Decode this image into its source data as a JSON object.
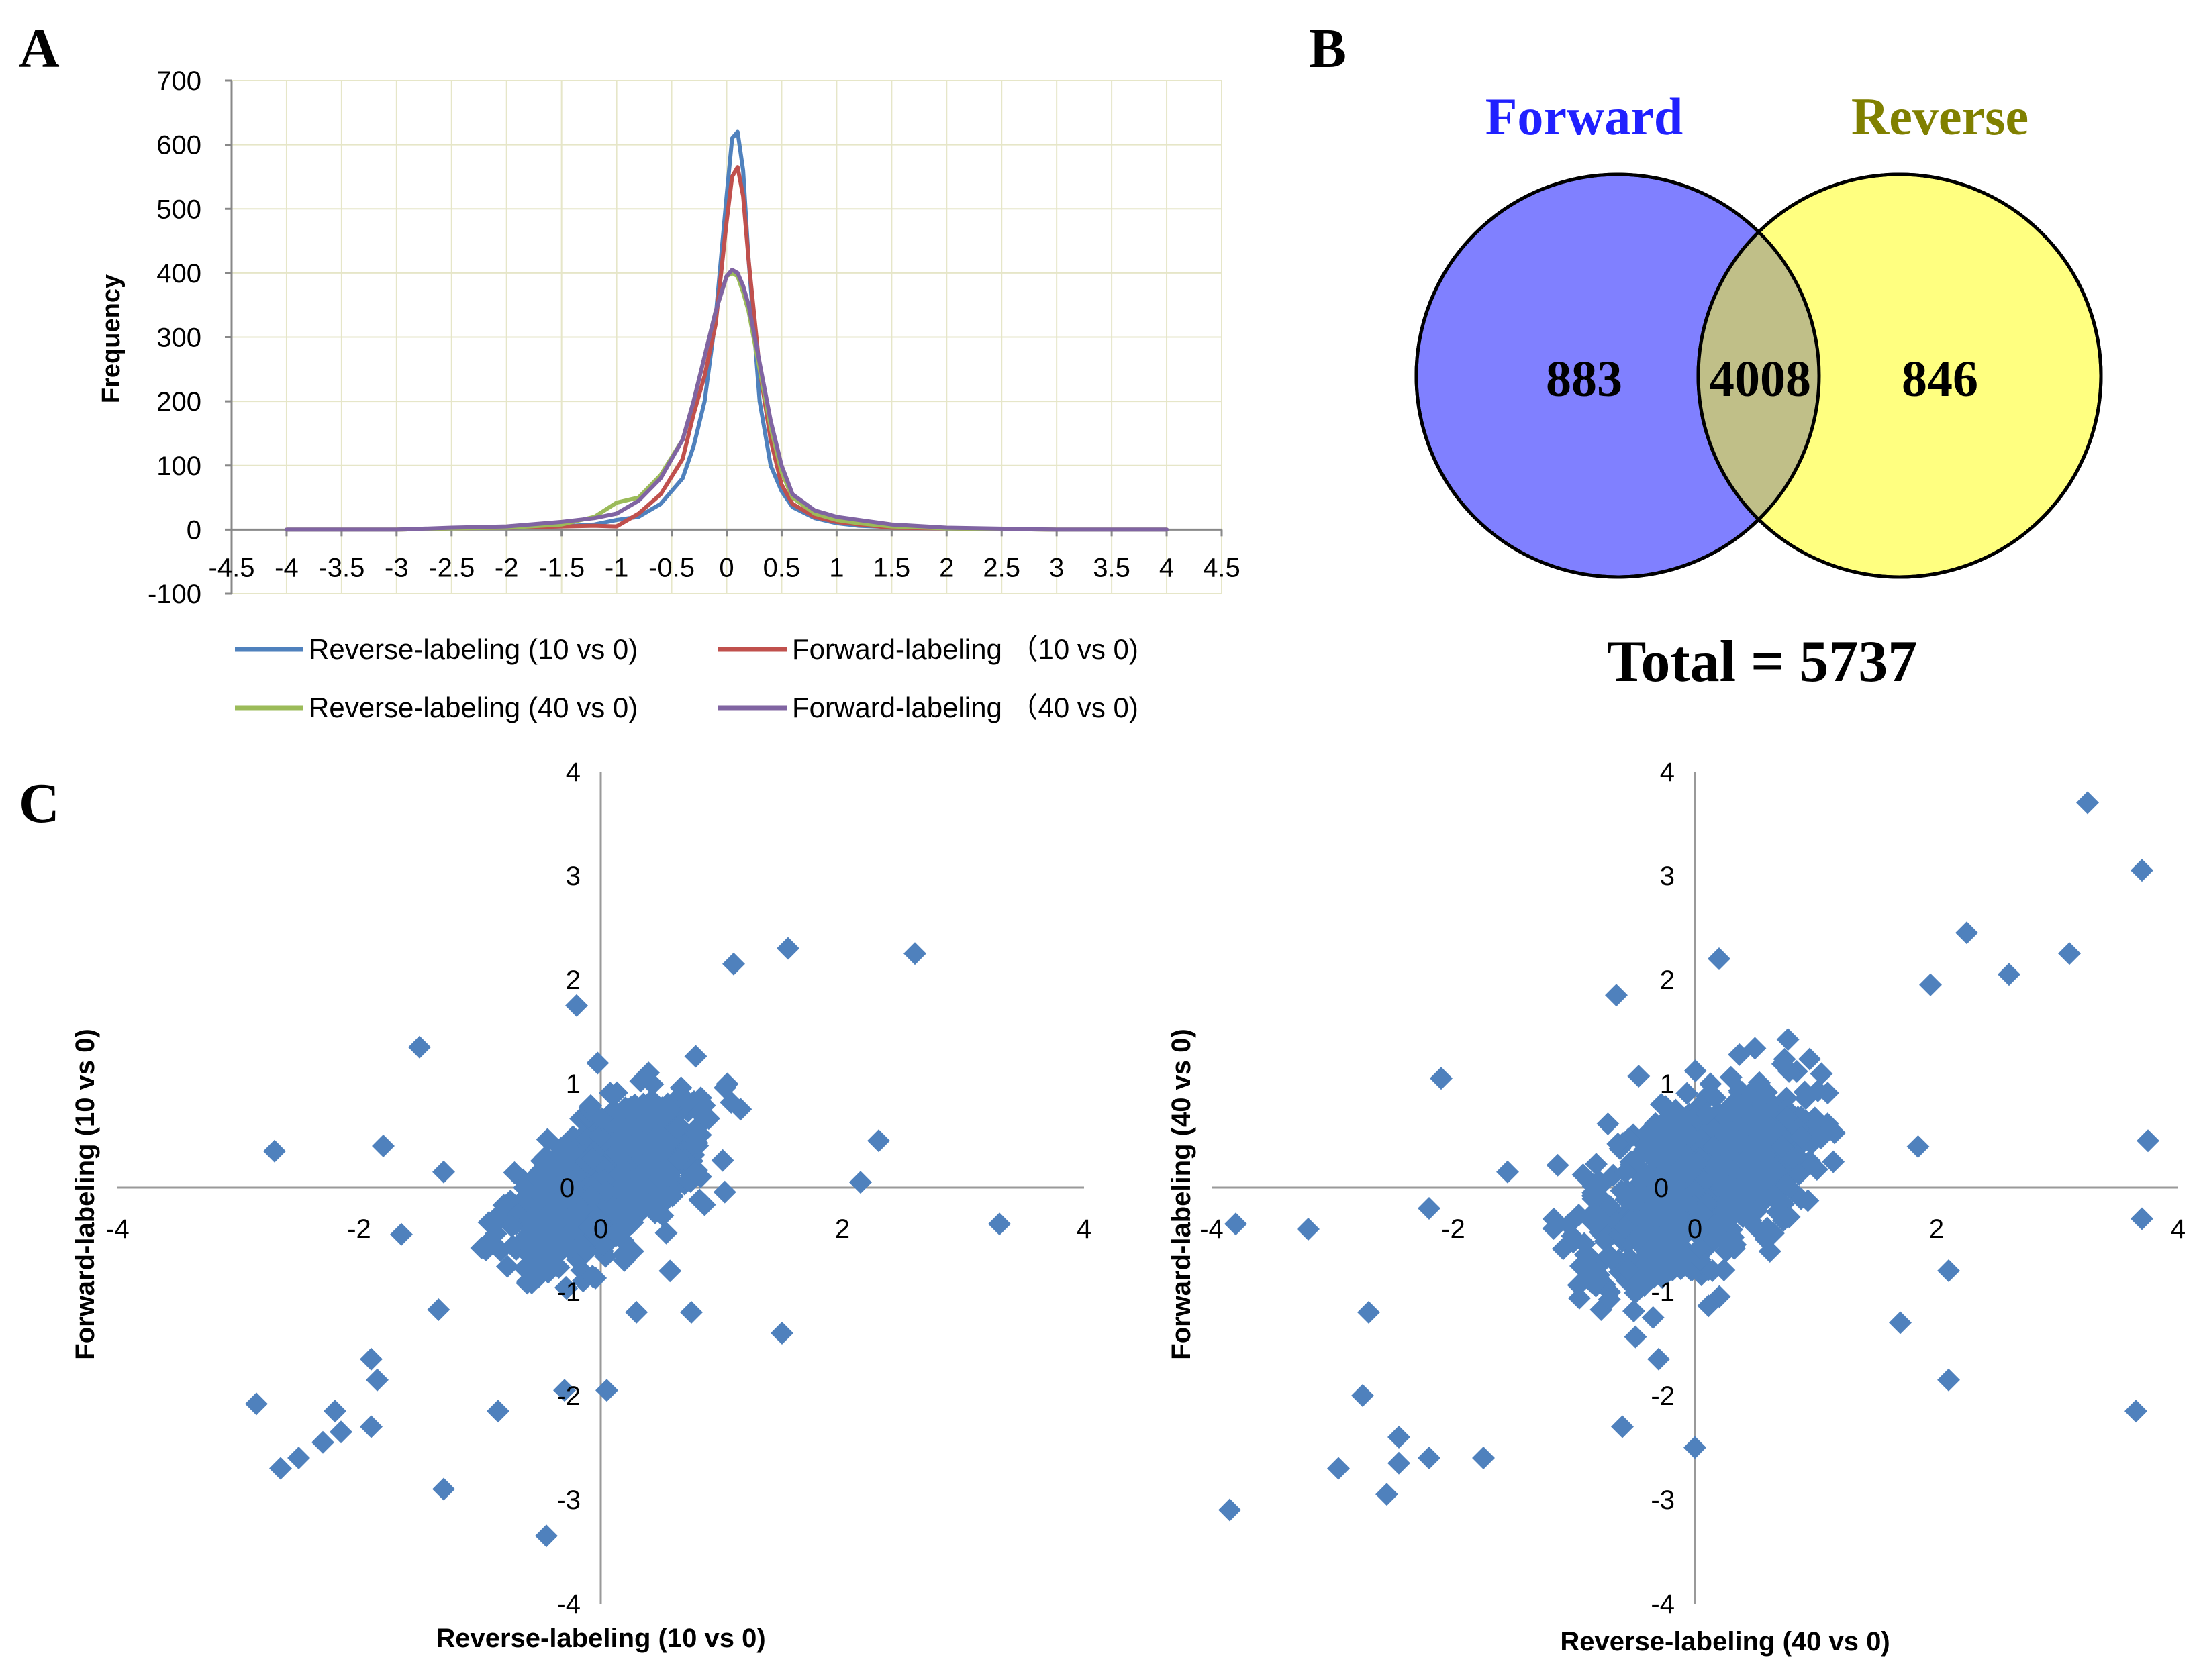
{
  "panel_labels": {
    "a": "A",
    "b": "B",
    "c": "C"
  },
  "colors": {
    "reverse_10": "#4f81bd",
    "forward_10": "#c0504d",
    "reverse_40": "#9bbb59",
    "forward_40": "#8064a2",
    "venn_forward": "#8080ff",
    "venn_reverse": "#ffff80",
    "venn_overlap": "#c0bf88",
    "forward_title": "#2020ff",
    "reverse_title": "#808000",
    "scatter_marker": "#4f81bd"
  },
  "chart_data": [
    {
      "id": "A",
      "type": "line",
      "title": "",
      "ylabel": "Frequency",
      "xlabel": "",
      "xlim": [
        -4.5,
        4.5
      ],
      "ylim": [
        -100,
        700
      ],
      "x_ticks": [
        "-4.5",
        "-4",
        "-3.5",
        "-3",
        "-2.5",
        "-2",
        "-1.5",
        "-1",
        "-0.5",
        "0",
        "0.5",
        "1",
        "1.5",
        "2",
        "2.5",
        "3",
        "3.5",
        "4",
        "4.5"
      ],
      "y_ticks": [
        "-100",
        "0",
        "100",
        "200",
        "300",
        "400",
        "500",
        "600",
        "700"
      ],
      "series": [
        {
          "name": "Reverse-labeling (10 vs 0)",
          "color_key": "reverse_10",
          "x": [
            -4,
            -3,
            -2.5,
            -2,
            -1.5,
            -1.2,
            -1,
            -0.8,
            -0.6,
            -0.4,
            -0.3,
            -0.2,
            -0.1,
            0,
            0.05,
            0.1,
            0.15,
            0.2,
            0.3,
            0.4,
            0.5,
            0.6,
            0.8,
            1,
            1.2,
            1.5,
            2,
            3,
            4
          ],
          "y": [
            0,
            0,
            2,
            3,
            5,
            8,
            15,
            20,
            40,
            80,
            130,
            200,
            330,
            520,
            610,
            620,
            560,
            420,
            200,
            100,
            60,
            35,
            18,
            10,
            6,
            4,
            2,
            0,
            0
          ]
        },
        {
          "name": "Forward-labeling （10 vs 0)",
          "color_key": "forward_10",
          "x": [
            -4,
            -3,
            -2.5,
            -2,
            -1.5,
            -1.2,
            -1,
            -0.8,
            -0.6,
            -0.4,
            -0.3,
            -0.2,
            -0.1,
            0,
            0.05,
            0.1,
            0.15,
            0.2,
            0.3,
            0.4,
            0.5,
            0.6,
            0.8,
            1,
            1.2,
            1.5,
            2,
            3,
            4
          ],
          "y": [
            0,
            0,
            2,
            3,
            5,
            6,
            5,
            25,
            55,
            110,
            180,
            240,
            320,
            480,
            550,
            565,
            520,
            420,
            250,
            140,
            70,
            40,
            20,
            12,
            8,
            3,
            2,
            0,
            0
          ]
        },
        {
          "name": "Reverse-labeling (40 vs 0)",
          "color_key": "reverse_40",
          "x": [
            -4,
            -3,
            -2.5,
            -2,
            -1.5,
            -1.2,
            -1,
            -0.8,
            -0.6,
            -0.4,
            -0.3,
            -0.2,
            -0.1,
            0,
            0.05,
            0.1,
            0.15,
            0.2,
            0.3,
            0.4,
            0.5,
            0.6,
            0.8,
            1,
            1.2,
            1.5,
            2,
            3,
            4
          ],
          "y": [
            0,
            0,
            2,
            3,
            8,
            20,
            42,
            50,
            85,
            140,
            200,
            270,
            340,
            395,
            400,
            395,
            370,
            340,
            250,
            160,
            90,
            50,
            25,
            15,
            10,
            5,
            2,
            0,
            0
          ]
        },
        {
          "name": "Forward-labeling （40 vs 0)",
          "color_key": "forward_40",
          "x": [
            -4,
            -3,
            -2.5,
            -2,
            -1.5,
            -1.2,
            -1,
            -0.8,
            -0.6,
            -0.4,
            -0.3,
            -0.2,
            -0.1,
            0,
            0.05,
            0.1,
            0.15,
            0.2,
            0.3,
            0.4,
            0.5,
            0.6,
            0.8,
            1,
            1.2,
            1.5,
            2,
            3,
            4
          ],
          "y": [
            0,
            0,
            3,
            5,
            12,
            18,
            25,
            45,
            80,
            140,
            200,
            270,
            340,
            395,
            405,
            400,
            380,
            350,
            260,
            170,
            100,
            55,
            30,
            20,
            15,
            8,
            3,
            0,
            0
          ]
        }
      ]
    },
    {
      "id": "B",
      "type": "venn",
      "sets": [
        "Forward",
        "Reverse"
      ],
      "only_forward": "883",
      "overlap": "4008",
      "only_reverse": "846",
      "total_label": "Total = 5737"
    },
    {
      "id": "C1",
      "type": "scatter",
      "xlabel": "Reverse-labeling (10 vs 0)",
      "ylabel": "Forward-labeling (10 vs 0)",
      "xlim": [
        -4,
        4
      ],
      "ylim": [
        -4,
        4
      ],
      "x_ticks": [
        "-4",
        "-2",
        "0",
        "2",
        "4"
      ],
      "y_ticks": [
        "4",
        "3",
        "2",
        "1",
        "0",
        "-1",
        "-2",
        "-3",
        "-4"
      ],
      "outliers": [
        [
          -2.7,
          0.35
        ],
        [
          -2.85,
          -2.08
        ],
        [
          -2.65,
          -2.7
        ],
        [
          -2.5,
          -2.6
        ],
        [
          -2.3,
          -2.45
        ],
        [
          -2.2,
          -2.15
        ],
        [
          -2.15,
          -2.35
        ],
        [
          -1.9,
          -2.3
        ],
        [
          -1.9,
          -1.65
        ],
        [
          -1.85,
          -1.85
        ],
        [
          -1.5,
          1.35
        ],
        [
          -1.3,
          -2.9
        ],
        [
          -0.85,
          -2.15
        ],
        [
          -0.45,
          -3.35
        ],
        [
          -0.3,
          -1.95
        ],
        [
          -0.2,
          1.75
        ],
        [
          0.05,
          -1.95
        ],
        [
          0.75,
          -1.2
        ],
        [
          1.1,
          2.15
        ],
        [
          1.55,
          2.3
        ],
        [
          1.5,
          -1.4
        ],
        [
          2.3,
          0.45
        ],
        [
          2.15,
          0.05
        ],
        [
          2.6,
          2.25
        ],
        [
          3.3,
          -0.35
        ],
        [
          -1.8,
          0.4
        ],
        [
          -1.3,
          0.15
        ],
        [
          -1.65,
          -0.45
        ]
      ]
    },
    {
      "id": "C2",
      "type": "scatter",
      "xlabel": "Reverse-labeling (40 vs 0)",
      "ylabel": "Forward-labeling (40 vs 0)",
      "xlim": [
        -4,
        4
      ],
      "ylim": [
        -4,
        4
      ],
      "x_ticks": [
        "-4",
        "-2",
        "0",
        "2",
        "4"
      ],
      "y_ticks": [
        "4",
        "3",
        "2",
        "1",
        "0",
        "-1",
        "-2",
        "-3",
        "-4"
      ],
      "outliers": [
        [
          -3.85,
          -3.1
        ],
        [
          -3.8,
          -0.35
        ],
        [
          -3.2,
          -0.4
        ],
        [
          -2.95,
          -2.7
        ],
        [
          -2.75,
          -2.0
        ],
        [
          -2.7,
          -1.2
        ],
        [
          -2.55,
          -2.95
        ],
        [
          -2.45,
          -2.65
        ],
        [
          -2.45,
          -2.4
        ],
        [
          -2.2,
          -2.6
        ],
        [
          -2.2,
          -0.2
        ],
        [
          -1.75,
          -2.6
        ],
        [
          -0.65,
          1.85
        ],
        [
          -0.6,
          -2.3
        ],
        [
          -0.3,
          -1.65
        ],
        [
          0.2,
          2.2
        ],
        [
          0.0,
          -2.5
        ],
        [
          3.25,
          3.7
        ],
        [
          3.7,
          3.05
        ],
        [
          3.75,
          0.45
        ],
        [
          3.7,
          -0.3
        ],
        [
          3.65,
          -2.15
        ],
        [
          3.1,
          2.25
        ],
        [
          2.6,
          2.05
        ],
        [
          2.25,
          2.45
        ],
        [
          2.1,
          -1.85
        ],
        [
          2.1,
          -0.8
        ],
        [
          1.95,
          1.95
        ],
        [
          -2.1,
          1.05
        ],
        [
          -1.55,
          0.15
        ],
        [
          1.7,
          -1.3
        ]
      ]
    }
  ]
}
